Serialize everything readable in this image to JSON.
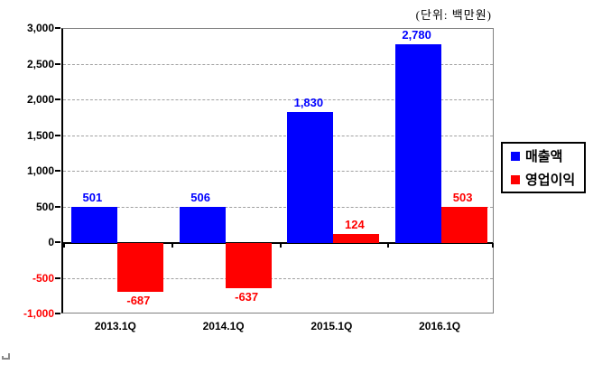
{
  "unit_label": "(단위: 백만원)",
  "chart_data": {
    "type": "bar",
    "title": "",
    "xlabel": "",
    "ylabel": "",
    "categories": [
      "2013.1Q",
      "2014.1Q",
      "2015.1Q",
      "2016.1Q"
    ],
    "series": [
      {
        "name": "매출액",
        "color": "#0000ff",
        "values": [
          501,
          506,
          1830,
          2780
        ],
        "labels": [
          "501",
          "506",
          "1,830",
          "2,780"
        ]
      },
      {
        "name": "영업이익",
        "color": "#ff0000",
        "values": [
          -687,
          -637,
          124,
          503
        ],
        "labels": [
          "-687",
          "-637",
          "124",
          "503"
        ]
      }
    ],
    "ylim": [
      -1000,
      3000
    ],
    "yticks": [
      {
        "label": "3,000",
        "value": 3000
      },
      {
        "label": "2,500",
        "value": 2500
      },
      {
        "label": "2,000",
        "value": 2000
      },
      {
        "label": "1,500",
        "value": 1500
      },
      {
        "label": "1,000",
        "value": 1000
      },
      {
        "label": "500",
        "value": 500
      },
      {
        "label": "0",
        "value": 0
      },
      {
        "label": "-500",
        "value": -500
      },
      {
        "label": "-1,000",
        "value": -1000
      }
    ],
    "grid": "horizontal-dashed",
    "legend_position": "right-outside"
  },
  "legend": {
    "items": [
      {
        "label": "매출액",
        "color": "#0000ff"
      },
      {
        "label": "영업이익",
        "color": "#ff0000"
      }
    ]
  },
  "colors": {
    "bar_blue": "#0000ff",
    "bar_red": "#ff0000",
    "axis_line": "#000000",
    "plot_border": "#808080",
    "gridline": "#a0a0a0",
    "positive_tick_text": "#000000",
    "negative_tick_text": "#ff0000",
    "background": "#ffffff"
  }
}
